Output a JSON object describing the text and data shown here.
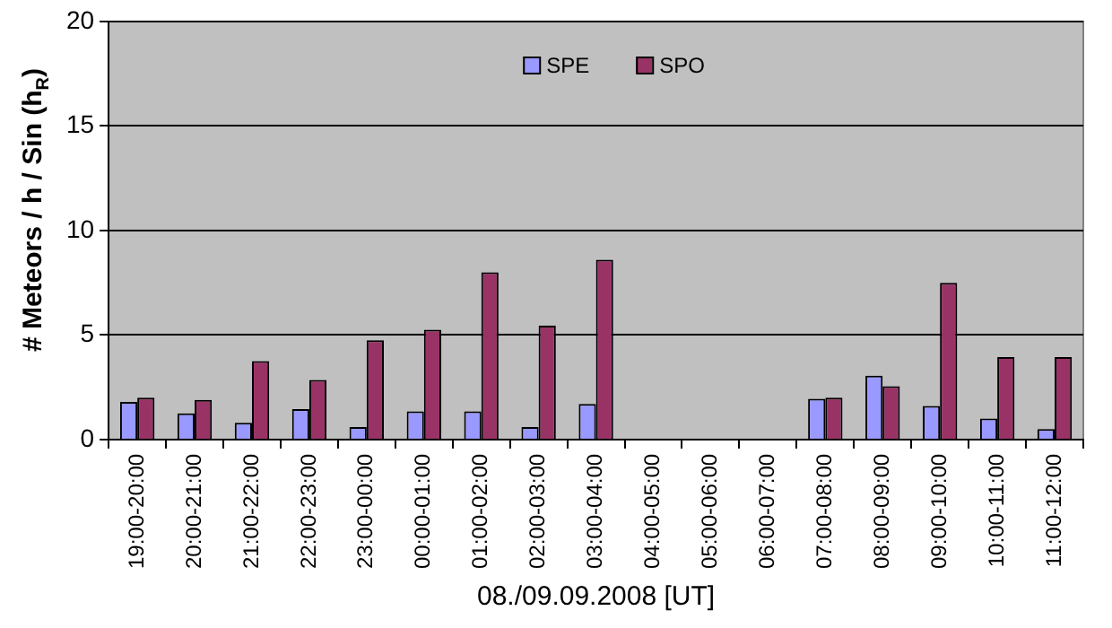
{
  "chart_data": {
    "type": "bar",
    "xlabel": "08./09.09.2008 [UT]",
    "ylabel": "# Meteors / h / Sin (h$_{R}$)",
    "categories": [
      "19:00-20:00",
      "20:00-21:00",
      "21:00-22:00",
      "22:00-23:00",
      "23:00-00:00",
      "00:00-01:00",
      "01:00-02:00",
      "02:00-03:00",
      "03:00-04:00",
      "04:00-05:00",
      "05:00-06:00",
      "06:00-07:00",
      "07:00-08:00",
      "08:00-09:00",
      "09:00-10:00",
      "10:00-11:00",
      "11:00-12:00"
    ],
    "series": [
      {
        "name": "SPE",
        "color": "#9999ff",
        "values": [
          1.8,
          1.25,
          0.8,
          1.45,
          0.6,
          1.35,
          1.35,
          0.6,
          1.7,
          null,
          null,
          null,
          1.95,
          3.05,
          1.6,
          1.0,
          0.5
        ]
      },
      {
        "name": "SPO",
        "color": "#993366",
        "values": [
          2.0,
          1.9,
          3.75,
          2.85,
          4.75,
          5.25,
          8.0,
          5.45,
          8.6,
          null,
          null,
          null,
          2.0,
          2.55,
          7.5,
          3.95,
          3.95
        ]
      }
    ],
    "ylim": [
      0,
      20
    ],
    "yticks": [
      0,
      5,
      10,
      15,
      20
    ],
    "grid": "y",
    "legend": "top"
  }
}
